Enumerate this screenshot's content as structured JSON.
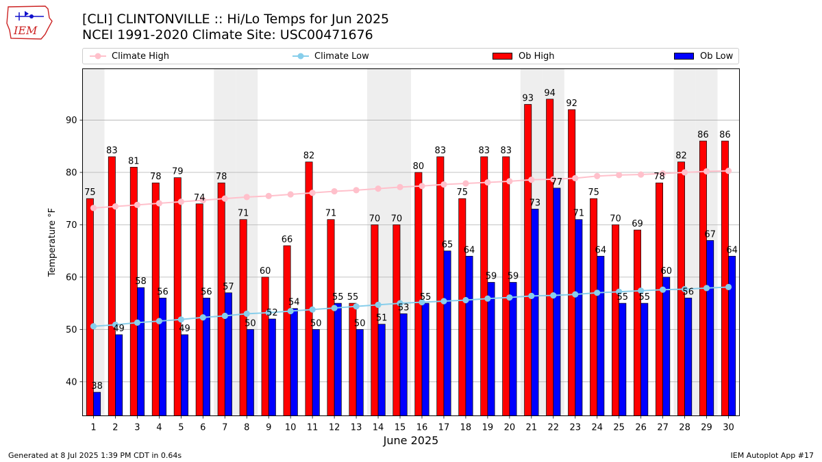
{
  "page": {
    "title_line1": "[CLI] CLINTONVILLE :: Hi/Lo Temps for Jun 2025",
    "title_line2": "NCEI 1991-2020 Climate Site: USC00471676",
    "logo_text": "IEM",
    "footer_left": "Generated at 8 Jul 2025 1:39 PM CDT in 0.64s",
    "footer_right": "IEM Autoplot App #17"
  },
  "legend": {
    "climate_high": "Climate High",
    "climate_low": "Climate Low",
    "ob_high": "Ob High",
    "ob_low": "Ob Low"
  },
  "colors": {
    "ob_high": "#ff0000",
    "ob_low": "#0000ff",
    "climate_high": "#ffc0cb",
    "climate_low": "#87ceeb",
    "weekend_shade": "#eeeeee",
    "grid": "#b0b0b0"
  },
  "chart_data": {
    "type": "bar",
    "xlabel": "June 2025",
    "ylabel": "Temperature °F",
    "ylim": [
      33.5,
      99.8
    ],
    "yticks": [
      40,
      50,
      60,
      70,
      80,
      90
    ],
    "grid": "horizontal",
    "legend_position": "top",
    "categories": [
      1,
      2,
      3,
      4,
      5,
      6,
      7,
      8,
      9,
      10,
      11,
      12,
      13,
      14,
      15,
      16,
      17,
      18,
      19,
      20,
      21,
      22,
      23,
      24,
      25,
      26,
      27,
      28,
      29,
      30
    ],
    "shaded_days": [
      1,
      7,
      8,
      14,
      15,
      21,
      22,
      28,
      29
    ],
    "series": [
      {
        "name": "Ob High",
        "kind": "bar",
        "values": [
          75,
          83,
          81,
          78,
          79,
          74,
          78,
          71,
          60,
          66,
          82,
          71,
          55,
          70,
          70,
          80,
          83,
          75,
          83,
          83,
          93,
          94,
          92,
          75,
          70,
          69,
          78,
          82,
          86,
          86
        ]
      },
      {
        "name": "Ob Low",
        "kind": "bar",
        "values": [
          38,
          49,
          58,
          56,
          49,
          56,
          57,
          50,
          52,
          54,
          50,
          55,
          50,
          51,
          53,
          55,
          65,
          64,
          59,
          59,
          73,
          77,
          71,
          64,
          55,
          55,
          60,
          56,
          67,
          64
        ]
      },
      {
        "name": "Climate High",
        "kind": "line",
        "values": [
          73.2,
          73.5,
          73.8,
          74.1,
          74.4,
          74.7,
          75.0,
          75.3,
          75.5,
          75.8,
          76.1,
          76.4,
          76.6,
          76.9,
          77.2,
          77.4,
          77.7,
          77.9,
          78.1,
          78.3,
          78.6,
          78.7,
          78.9,
          79.3,
          79.5,
          79.6,
          79.8,
          80.0,
          80.2,
          80.3
        ]
      },
      {
        "name": "Climate Low",
        "kind": "line",
        "values": [
          50.6,
          50.9,
          51.3,
          51.6,
          51.9,
          52.3,
          52.6,
          53.0,
          53.2,
          53.5,
          53.8,
          54.1,
          54.4,
          54.7,
          55.0,
          55.2,
          55.4,
          55.6,
          55.9,
          56.1,
          56.4,
          56.5,
          56.7,
          57.0,
          57.2,
          57.4,
          57.6,
          57.7,
          57.9,
          58.1
        ]
      }
    ]
  }
}
